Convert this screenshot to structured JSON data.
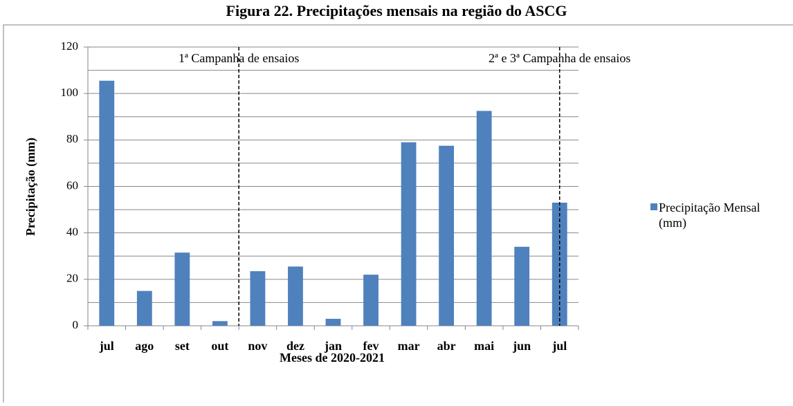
{
  "chart_data": {
    "type": "bar",
    "title": "Figura 22. Precipitações mensais na região do ASCG",
    "x_label": "Meses de 2020-2021",
    "y_label": "Precipitação (mm)",
    "categories": [
      "jul",
      "ago",
      "set",
      "out",
      "nov",
      "dez",
      "jan",
      "fev",
      "mar",
      "abr",
      "mai",
      "jun",
      "jul"
    ],
    "series": [
      {
        "name": "Precipitação Mensal (mm)",
        "color": "#4f81bd",
        "values": [
          105.5,
          15,
          31.5,
          2,
          23.5,
          25.5,
          3,
          22,
          79,
          77.5,
          92.5,
          34,
          53
        ]
      }
    ],
    "ylim": [
      0,
      120
    ],
    "yticks": [
      0,
      20,
      40,
      60,
      80,
      100,
      120
    ],
    "grid": true,
    "minor_grid": true,
    "legend": "right",
    "annotations": [
      {
        "text": "1ª Campanha de ensaios",
        "x": 4
      },
      {
        "text": "2ª e 3ª Campanha de ensaios",
        "x": 12.5
      }
    ]
  }
}
